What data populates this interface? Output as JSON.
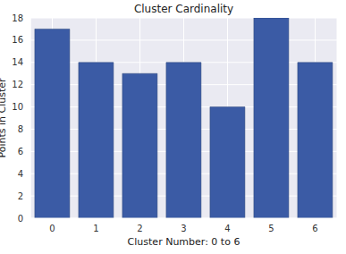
{
  "chart_data": {
    "type": "bar",
    "title": "Cluster Cardinality",
    "x_label": "Cluster Number: 0 to 6",
    "y_label": "Points in Cluster",
    "categories": [
      "0",
      "1",
      "2",
      "3",
      "4",
      "5",
      "6"
    ],
    "values": [
      17,
      14,
      13,
      14,
      10,
      18,
      14
    ],
    "color": "#3b5ba5",
    "ylim": [
      0,
      18
    ],
    "yticks": [
      0,
      2,
      4,
      6,
      8,
      10,
      12,
      14,
      16,
      18
    ],
    "grid": true
  }
}
